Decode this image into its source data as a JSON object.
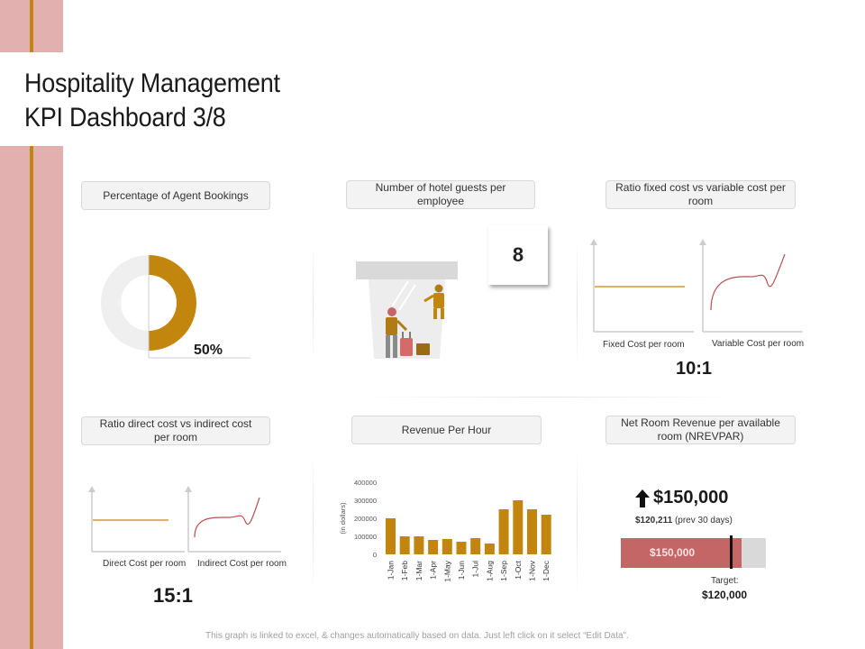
{
  "title_line1": "Hospitality Management",
  "title_line2": "KPI Dashboard 3/8",
  "colors": {
    "accent": "#c2860f",
    "sidebar": "#e2b0af",
    "revenue_bar": "#c56666",
    "neutral": "#d9d9d9",
    "curve": "#b85050"
  },
  "kpi_agent": {
    "label": "Percentage of Agent Bookings",
    "percent": 50,
    "value_text": "50%"
  },
  "kpi_guests": {
    "label": "Number of hotel guests per employee",
    "value": "8",
    "icon": "hotel-guest-bellhop-icon"
  },
  "kpi_fixed_var": {
    "label": "Ratio fixed cost vs variable cost per room",
    "left_caption": "Fixed Cost per room",
    "right_caption": "Variable Cost per room",
    "ratio": "10:1"
  },
  "kpi_direct_indirect": {
    "label": "Ratio direct cost vs indirect cost per room",
    "left_caption": "Direct Cost per room",
    "right_caption": "Indirect Cost per room",
    "ratio": "15:1"
  },
  "kpi_revenue_hour": {
    "label": "Revenue Per Hour"
  },
  "kpi_nrevpar": {
    "label": "Net Room Revenue per available room (NREVPAR)",
    "value": "$150,000",
    "prev_amount": "$120,211",
    "prev_note": "(prev 30 days)",
    "bar_label": "$150,000",
    "actual": 150000,
    "max": 180000,
    "target": 120000,
    "target_marker_fraction": 0.75,
    "target_label": "Target:",
    "target_value": "$120,000",
    "arrow_icon": "up-arrow-icon"
  },
  "chart_data": {
    "type": "bar",
    "ylabel": "(in dollars)",
    "ylim": [
      0,
      400000
    ],
    "yticks": [
      0,
      100000,
      200000,
      300000,
      400000
    ],
    "ytick_labels": [
      "0",
      "100000",
      "200000",
      "300000",
      "400000"
    ],
    "categories": [
      "1-Jan",
      "1-Feb",
      "1-Mar",
      "1-Apr",
      "1-May",
      "1-Jun",
      "1-Jul",
      "1-Aug",
      "1-Sep",
      "1-Oct",
      "1-Nov",
      "1-Dec"
    ],
    "values": [
      200000,
      100000,
      100000,
      80000,
      85000,
      70000,
      90000,
      60000,
      250000,
      300000,
      250000,
      220000
    ],
    "grid": false
  },
  "footer": "This graph is linked to excel, & changes automatically based on data. Just left click on it select “Edit Data”."
}
